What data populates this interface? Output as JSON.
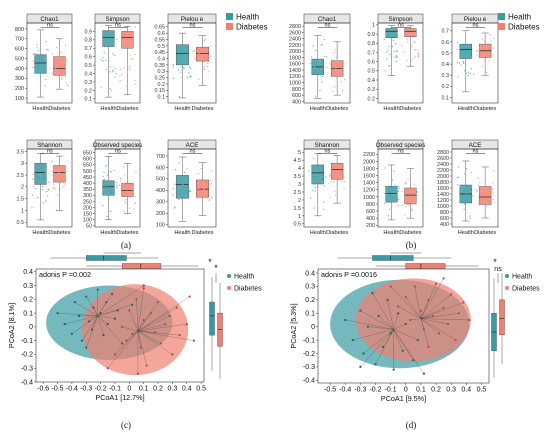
{
  "colors": {
    "health": "#3A9AA3",
    "diabetes": "#F08070",
    "health_light": "#6DB8C0",
    "diabetes_light": "#F6A497"
  },
  "legend": {
    "health": "Health",
    "diabetes": "Diabetes"
  },
  "captions": {
    "a": "(a)",
    "b": "(b)",
    "c": "(c)",
    "d": "(d)"
  },
  "chart_data": [
    {
      "panel": "a",
      "type": "box",
      "groups": [
        "Health",
        "Diabetes"
      ],
      "facets": [
        {
          "title": "Chao1",
          "ylim": [
            50,
            860
          ],
          "ticks": [
            100,
            200,
            300,
            400,
            500,
            600,
            700,
            800
          ],
          "sig": "ns",
          "box": [
            {
              "q1": 350,
              "median": 455,
              "q3": 540,
              "lo": 110,
              "hi": 790
            },
            {
              "q1": 330,
              "median": 400,
              "q3": 520,
              "lo": 190,
              "hi": 700
            }
          ]
        },
        {
          "title": "Simpson",
          "ylim": [
            0.05,
            1.0
          ],
          "ticks": [
            0.1,
            0.2,
            0.3,
            0.4,
            0.5,
            0.6,
            0.7,
            0.8,
            0.9
          ],
          "sig": "ns",
          "box": [
            {
              "q1": 0.72,
              "median": 0.83,
              "q3": 0.91,
              "lo": 0.12,
              "hi": 0.97
            },
            {
              "q1": 0.7,
              "median": 0.83,
              "q3": 0.9,
              "lo": 0.15,
              "hi": 0.96
            }
          ]
        },
        {
          "title": "Pielou_e",
          "ylim": [
            0.05,
            0.68
          ],
          "ticks": [
            0.1,
            0.15,
            0.2,
            0.25,
            0.3,
            0.35,
            0.4,
            0.45,
            0.5,
            0.55,
            0.6,
            0.65
          ],
          "sig": "ns",
          "box": [
            {
              "q1": 0.35,
              "median": 0.44,
              "q3": 0.51,
              "lo": 0.09,
              "hi": 0.6
            },
            {
              "q1": 0.38,
              "median": 0.44,
              "q3": 0.49,
              "lo": 0.19,
              "hi": 0.58
            }
          ]
        },
        {
          "title": "Shannon",
          "ylim": [
            0.3,
            3.6
          ],
          "ticks": [
            0.5,
            1,
            1.5,
            2,
            2.5,
            3,
            3.5
          ],
          "sig": "ns",
          "box": [
            {
              "q1": 2.1,
              "median": 2.6,
              "q3": 3.0,
              "lo": 0.6,
              "hi": 3.4
            },
            {
              "q1": 2.2,
              "median": 2.6,
              "q3": 2.9,
              "lo": 1.0,
              "hi": 3.3
            }
          ]
        },
        {
          "title": "Observed_species",
          "ylim": [
            40,
            680
          ],
          "ticks": [
            50,
            100,
            150,
            200,
            250,
            300,
            350,
            400,
            450,
            500,
            550,
            600,
            650
          ],
          "sig": "ns",
          "box": [
            {
              "q1": 300,
              "median": 370,
              "q3": 420,
              "lo": 100,
              "hi": 620
            },
            {
              "q1": 290,
              "median": 340,
              "q3": 400,
              "lo": 150,
              "hi": 560
            }
          ]
        },
        {
          "title": "ACE",
          "ylim": [
            80,
            760
          ],
          "ticks": [
            100,
            200,
            300,
            400,
            500,
            600,
            700
          ],
          "sig": "ns",
          "box": [
            {
              "q1": 330,
              "median": 450,
              "q3": 530,
              "lo": 130,
              "hi": 690
            },
            {
              "q1": 340,
              "median": 410,
              "q3": 490,
              "lo": 180,
              "hi": 640
            }
          ]
        }
      ]
    },
    {
      "panel": "b",
      "type": "box",
      "groups": [
        "Health",
        "Diabetes"
      ],
      "facets": [
        {
          "title": "Chao1",
          "ylim": [
            350,
            2900
          ],
          "ticks": [
            400,
            600,
            800,
            1000,
            1200,
            1400,
            1600,
            1800,
            2000,
            2200,
            2400,
            2600,
            2800
          ],
          "sig": "ns",
          "box": [
            {
              "q1": 1250,
              "median": 1500,
              "q3": 1750,
              "lo": 500,
              "hi": 2500
            },
            {
              "q1": 1200,
              "median": 1450,
              "q3": 1700,
              "lo": 600,
              "hi": 2300
            }
          ]
        },
        {
          "title": "Simpson",
          "ylim": [
            0.15,
            1.02
          ],
          "ticks": [
            0.2,
            0.3,
            0.4,
            0.5,
            0.6,
            0.7,
            0.8,
            0.9,
            1
          ],
          "sig": "ns",
          "box": [
            {
              "q1": 0.86,
              "median": 0.93,
              "q3": 0.96,
              "lo": 0.45,
              "hi": 0.99
            },
            {
              "q1": 0.87,
              "median": 0.93,
              "q3": 0.96,
              "lo": 0.55,
              "hi": 0.99
            }
          ]
        },
        {
          "title": "Pielou_e",
          "ylim": [
            0.05,
            0.77
          ],
          "ticks": [
            0.1,
            0.2,
            0.3,
            0.4,
            0.5,
            0.6,
            0.7
          ],
          "sig": "ns",
          "box": [
            {
              "q1": 0.45,
              "median": 0.53,
              "q3": 0.58,
              "lo": 0.15,
              "hi": 0.7
            },
            {
              "q1": 0.46,
              "median": 0.52,
              "q3": 0.58,
              "lo": 0.3,
              "hi": 0.68
            }
          ]
        },
        {
          "title": "Shannon",
          "ylim": [
            0.3,
            5.2
          ],
          "ticks": [
            0.5,
            1,
            1.5,
            2,
            2.5,
            3,
            3.5,
            4,
            4.5,
            5
          ],
          "sig": "ns",
          "box": [
            {
              "q1": 3.0,
              "median": 3.7,
              "q3": 4.2,
              "lo": 1.0,
              "hi": 4.9
            },
            {
              "q1": 3.3,
              "median": 3.9,
              "q3": 4.3,
              "lo": 1.8,
              "hi": 4.8
            }
          ]
        },
        {
          "title": "Observed_species",
          "ylim": [
            150,
            2350
          ],
          "ticks": [
            200,
            400,
            600,
            800,
            1000,
            1200,
            1400,
            1600,
            1800,
            2000,
            2200
          ],
          "sig": "ns",
          "box": [
            {
              "q1": 850,
              "median": 1100,
              "q3": 1300,
              "lo": 350,
              "hi": 1900
            },
            {
              "q1": 800,
              "median": 1050,
              "q3": 1250,
              "lo": 400,
              "hi": 1800
            }
          ]
        },
        {
          "title": "ACE",
          "ylim": [
            300,
            2900
          ],
          "ticks": [
            400,
            600,
            800,
            1000,
            1200,
            1400,
            1600,
            1800,
            2000,
            2200,
            2400,
            2600,
            2800
          ],
          "sig": "ns",
          "box": [
            {
              "q1": 1100,
              "median": 1400,
              "q3": 1700,
              "lo": 500,
              "hi": 2500
            },
            {
              "q1": 1050,
              "median": 1300,
              "q3": 1650,
              "lo": 600,
              "hi": 2300
            }
          ]
        }
      ]
    },
    {
      "panel": "c",
      "type": "scatter",
      "annotation": "adonis P =0.002",
      "xlabel": "PCoA1 [12.7%]",
      "ylabel": "PCoA2 [8.1%]",
      "xlim": [
        -0.65,
        0.52
      ],
      "ylim": [
        -0.4,
        0.42
      ],
      "xticks": [
        -0.6,
        -0.5,
        -0.4,
        -0.3,
        -0.2,
        -0.1,
        0,
        0.1,
        0.2,
        0.3,
        0.4,
        0.5
      ],
      "yticks": [
        -0.4,
        -0.3,
        -0.2,
        -0.1,
        0,
        0.1,
        0.2,
        0.3,
        0.4
      ],
      "ellipses": [
        {
          "group": "Health",
          "cx": -0.14,
          "cy": 0.03,
          "rx": 0.44,
          "ry": 0.27
        },
        {
          "group": "Diabetes",
          "cx": 0.04,
          "cy": -0.02,
          "rx": 0.37,
          "ry": 0.33
        }
      ],
      "centroids": {
        "Health": [
          -0.22,
          0.08
        ],
        "Diabetes": [
          0.06,
          -0.03
        ]
      },
      "series": [
        {
          "name": "Health",
          "points": [
            [
              -0.5,
              0.1
            ],
            [
              -0.45,
              0.02
            ],
            [
              -0.4,
              -0.05
            ],
            [
              -0.38,
              0.18
            ],
            [
              -0.35,
              0.08
            ],
            [
              -0.33,
              -0.1
            ],
            [
              -0.3,
              0.22
            ],
            [
              -0.28,
              0.04
            ],
            [
              -0.26,
              -0.02
            ],
            [
              -0.25,
              0.14
            ],
            [
              -0.22,
              0.27
            ],
            [
              -0.2,
              0.1
            ],
            [
              -0.18,
              -0.06
            ],
            [
              -0.16,
              0.18
            ],
            [
              -0.15,
              0.02
            ],
            [
              -0.12,
              0.24
            ],
            [
              -0.1,
              0.06
            ],
            [
              -0.08,
              0.12
            ],
            [
              -0.05,
              -0.12
            ],
            [
              0.02,
              0.16
            ],
            [
              -0.3,
              -0.15
            ],
            [
              0.1,
              0.3
            ]
          ]
        },
        {
          "name": "Diabetes",
          "points": [
            [
              -0.1,
              -0.2
            ],
            [
              -0.05,
              0.0
            ],
            [
              -0.02,
              -0.1
            ],
            [
              0.0,
              0.12
            ],
            [
              0.02,
              -0.05
            ],
            [
              0.05,
              0.2
            ],
            [
              0.08,
              -0.15
            ],
            [
              0.1,
              0.05
            ],
            [
              0.12,
              -0.28
            ],
            [
              0.15,
              0.1
            ],
            [
              0.18,
              -0.04
            ],
            [
              0.2,
              0.18
            ],
            [
              0.22,
              -0.12
            ],
            [
              0.25,
              0.02
            ],
            [
              0.28,
              0.08
            ],
            [
              0.3,
              -0.2
            ],
            [
              0.33,
              0.14
            ],
            [
              0.35,
              -0.06
            ],
            [
              0.4,
              0.02
            ],
            [
              0.42,
              0.22
            ],
            [
              0.1,
              0.28
            ],
            [
              0.06,
              -0.34
            ],
            [
              0.45,
              -0.1
            ],
            [
              -0.15,
              -0.3
            ]
          ]
        }
      ],
      "sig_x": "*",
      "sig_y": "*",
      "marginal_x": [
        {
          "q1": -0.3,
          "median": -0.18,
          "q3": -0.02,
          "lo": -0.55,
          "hi": 0.2
        },
        {
          "q1": -0.05,
          "median": 0.08,
          "q3": 0.22,
          "lo": -0.3,
          "hi": 0.48
        }
      ],
      "marginal_y": [
        {
          "q1": -0.06,
          "median": 0.08,
          "q3": 0.18,
          "lo": -0.32,
          "hi": 0.36
        },
        {
          "q1": -0.14,
          "median": -0.02,
          "q3": 0.1,
          "lo": -0.38,
          "hi": 0.32
        }
      ]
    },
    {
      "panel": "d",
      "type": "scatter",
      "annotation": "adonis P =0.0016",
      "xlabel": "PCoA1 [9.5%]",
      "ylabel": "PCoA2 [5.3%]",
      "xlim": [
        -0.58,
        0.55
      ],
      "ylim": [
        -0.42,
        0.43
      ],
      "xticks": [
        -0.5,
        -0.4,
        -0.3,
        -0.2,
        -0.1,
        0,
        0.1,
        0.2,
        0.3,
        0.4,
        0.5
      ],
      "yticks": [
        -0.4,
        -0.3,
        -0.2,
        -0.1,
        0,
        0.1,
        0.2,
        0.3,
        0.4
      ],
      "ellipses": [
        {
          "group": "Health",
          "cx": -0.04,
          "cy": 0.02,
          "rx": 0.46,
          "ry": 0.33
        },
        {
          "group": "Diabetes",
          "cx": 0.05,
          "cy": 0.05,
          "rx": 0.38,
          "ry": 0.31
        }
      ],
      "centroids": {
        "Health": [
          -0.08,
          -0.02
        ],
        "Diabetes": [
          0.1,
          0.06
        ]
      },
      "series": [
        {
          "name": "Health",
          "points": [
            [
              -0.4,
              0.05
            ],
            [
              -0.35,
              -0.1
            ],
            [
              -0.3,
              0.12
            ],
            [
              -0.28,
              -0.2
            ],
            [
              -0.25,
              0.0
            ],
            [
              -0.2,
              -0.28
            ],
            [
              -0.18,
              0.08
            ],
            [
              -0.15,
              -0.15
            ],
            [
              -0.12,
              0.2
            ],
            [
              -0.1,
              -0.05
            ],
            [
              -0.08,
              -0.32
            ],
            [
              -0.05,
              0.1
            ],
            [
              -0.02,
              -0.18
            ],
            [
              0.0,
              0.02
            ],
            [
              0.05,
              -0.25
            ],
            [
              0.08,
              -0.1
            ],
            [
              -0.3,
              -0.3
            ],
            [
              0.12,
              -0.35
            ],
            [
              -0.22,
              0.25
            ]
          ]
        },
        {
          "name": "Diabetes",
          "points": [
            [
              -0.1,
              0.3
            ],
            [
              -0.05,
              0.15
            ],
            [
              0.0,
              0.22
            ],
            [
              0.03,
              0.05
            ],
            [
              0.06,
              0.3
            ],
            [
              0.1,
              0.12
            ],
            [
              0.12,
              -0.02
            ],
            [
              0.15,
              0.2
            ],
            [
              0.18,
              0.08
            ],
            [
              0.2,
              0.32
            ],
            [
              0.22,
              -0.05
            ],
            [
              0.25,
              0.14
            ],
            [
              0.28,
              0.02
            ],
            [
              0.3,
              0.24
            ],
            [
              0.33,
              -0.1
            ],
            [
              0.35,
              0.1
            ],
            [
              0.38,
              0.18
            ],
            [
              0.25,
              0.36
            ],
            [
              0.42,
              0.05
            ],
            [
              0.15,
              -0.15
            ]
          ]
        }
      ],
      "sig_x": "*",
      "sig_y": "ns",
      "marginal_x": [
        {
          "q1": -0.22,
          "median": -0.1,
          "q3": 0.05,
          "lo": -0.45,
          "hi": 0.3
        },
        {
          "q1": 0.0,
          "median": 0.1,
          "q3": 0.26,
          "lo": -0.2,
          "hi": 0.48
        }
      ],
      "marginal_y": [
        {
          "q1": -0.18,
          "median": -0.04,
          "q3": 0.1,
          "lo": -0.38,
          "hi": 0.36
        },
        {
          "q1": -0.06,
          "median": 0.06,
          "q3": 0.2,
          "lo": -0.28,
          "hi": 0.4
        }
      ]
    }
  ]
}
